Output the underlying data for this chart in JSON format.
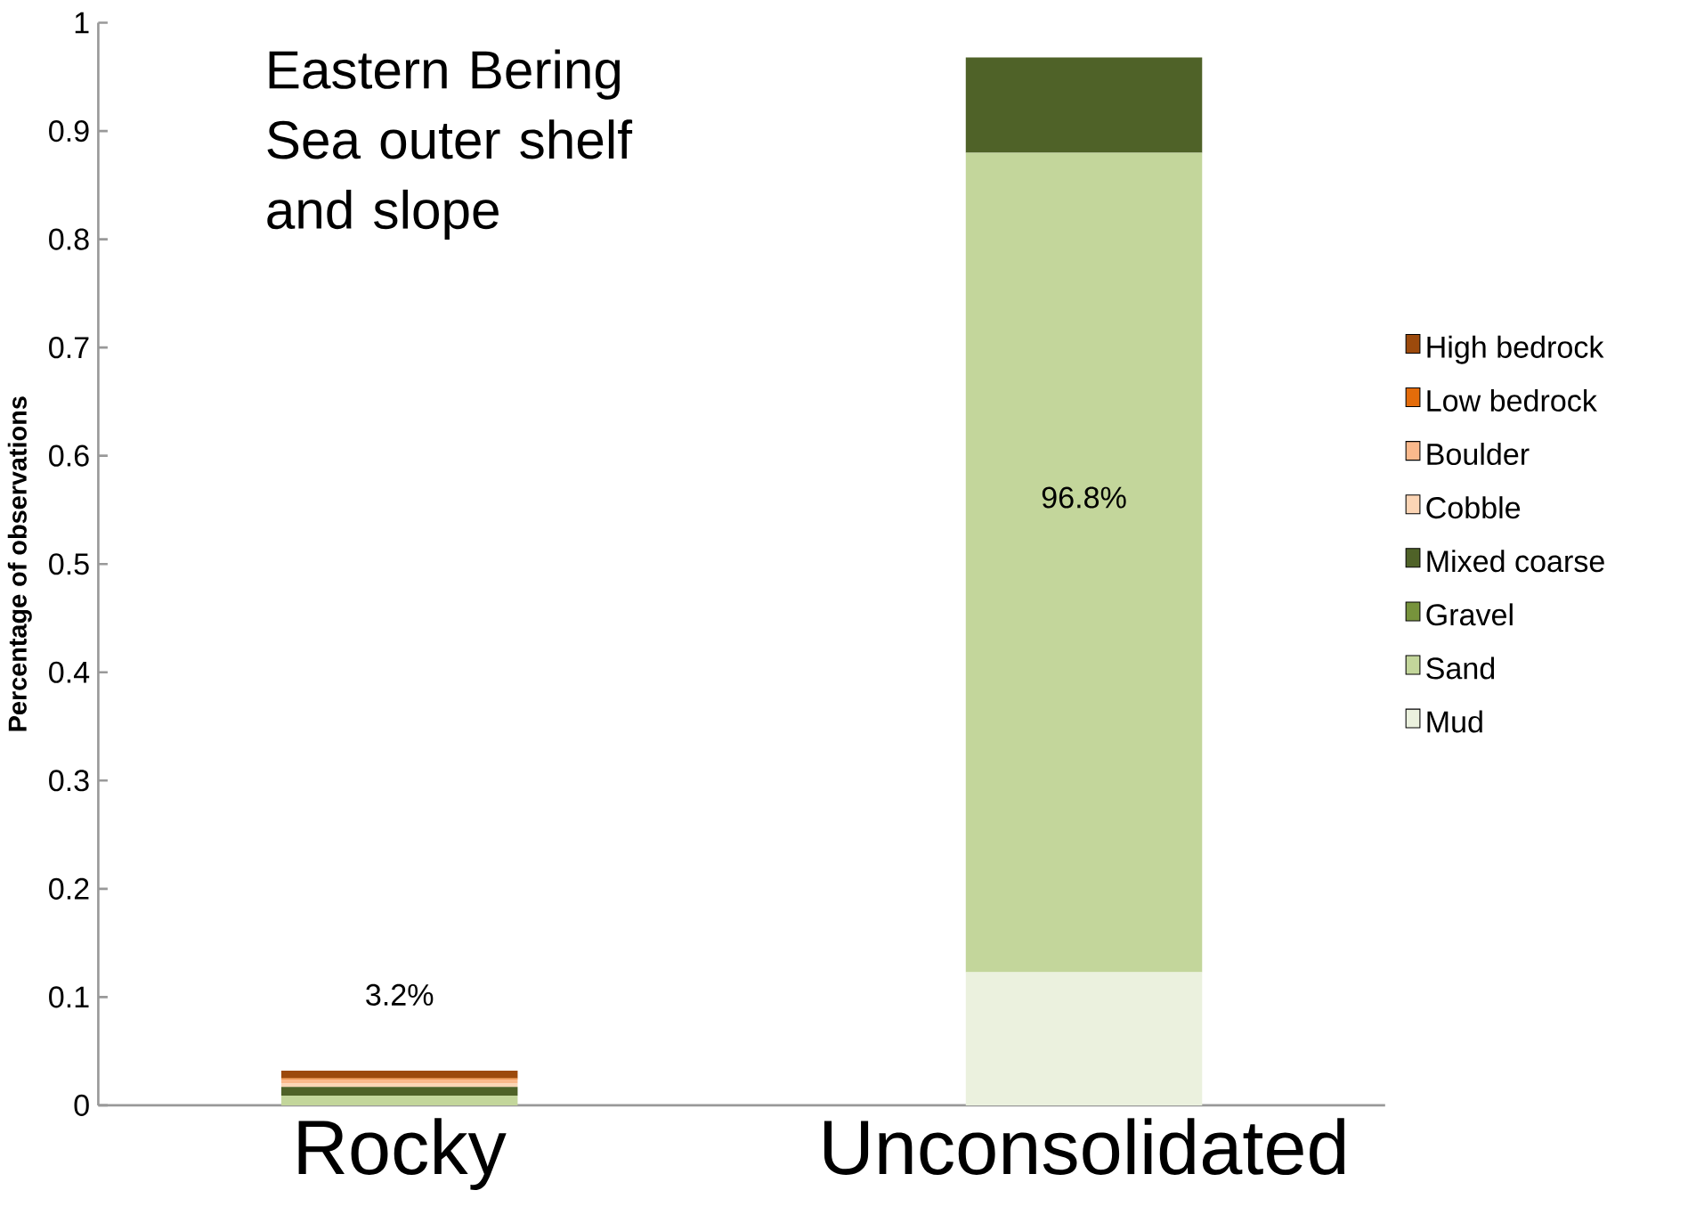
{
  "chart_data": {
    "type": "bar",
    "stacked": true,
    "title": "Eastern Bering  Sea outer shelf and slope",
    "ylabel": "Percentage of observations",
    "categories": [
      "Rocky",
      "Unconsolidated"
    ],
    "series": [
      {
        "name": "Mud",
        "color": "#ebf1de",
        "values": [
          0,
          0.123
        ]
      },
      {
        "name": "Sand",
        "color": "#c3d69b",
        "values": [
          0.009,
          0.757
        ]
      },
      {
        "name": "Gravel",
        "color": "#77933c",
        "values": [
          0,
          0
        ]
      },
      {
        "name": "Mixed coarse",
        "color": "#4f6228",
        "values": [
          0.008,
          0.088
        ]
      },
      {
        "name": "Cobble",
        "color": "#fcd5b5",
        "values": [
          0.003,
          0
        ]
      },
      {
        "name": "Boulder",
        "color": "#fab98c",
        "values": [
          0.004,
          0
        ]
      },
      {
        "name": "Low bedrock",
        "color": "#e46c0a",
        "values": [
          0.001,
          0
        ]
      },
      {
        "name": "High bedrock",
        "color": "#9c4a0c",
        "values": [
          0.007,
          0
        ]
      }
    ],
    "ylim": [
      0,
      1
    ],
    "yticks": [
      0,
      0.1,
      0.2,
      0.3,
      0.4,
      0.5,
      0.6,
      0.7,
      0.8,
      0.9,
      1
    ],
    "legend": "right",
    "grid": false,
    "totals": [
      "3.2%",
      "96.8%"
    ]
  }
}
